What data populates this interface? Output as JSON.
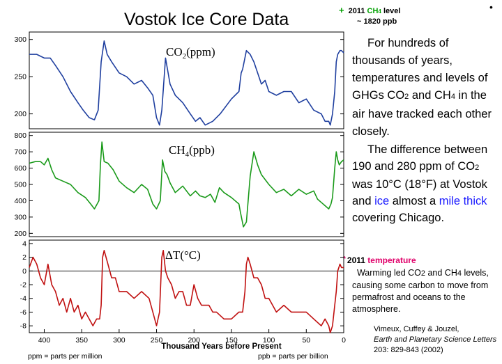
{
  "slide": {
    "title": "Vostok Ice Core Data",
    "bullet": "•",
    "ch4_note": {
      "plus": "+",
      "year": "2011",
      "ch": "CH",
      "sub": "4",
      "level": "level",
      "value": "~ 1820 ppb"
    },
    "para1": {
      "text": "For hundreds of thousands of years, temperatures and levels of GHGs CO",
      "s1": "2",
      "mid": " and CH",
      "s2": "4",
      "tail": " in the air have tracked each other closely."
    },
    "para2": {
      "a": "The difference between 190 and 280 ppm of CO",
      "s1": "2",
      "b": " was 10°C (18°F) at Vostok and ",
      "ice": "ice",
      "c": " almost a ",
      "mile": "mile thick",
      "d": " covering Chicago."
    },
    "temp_note": {
      "star": "*",
      "year": "2011",
      "word": "temperature",
      "a": "Warming led CO",
      "s1": "2",
      "b": " and CH",
      "s2": "4",
      "c": " levels, causing some carbon to move from permafrost and oceans to the atmosphere."
    },
    "citation": {
      "authors": "Vimeux, Cuffey & Jouzel,",
      "journal": "Earth and Planetary Science Letters",
      "ref": " 203: 829-843 (2002)"
    },
    "ppm_note": "ppm = parts per million",
    "ppb_note": "ppb = parts per billion"
  },
  "chart_data": [
    {
      "type": "line",
      "title": "CO2(ppm)",
      "ylim": [
        180,
        310
      ],
      "xlim": [
        420,
        0
      ],
      "yticks": [
        200,
        250,
        300
      ],
      "color": "#1f3f9f",
      "x": [
        420,
        410,
        400,
        392,
        385,
        375,
        365,
        355,
        348,
        340,
        333,
        328,
        324,
        320,
        316,
        310,
        300,
        290,
        280,
        270,
        262,
        255,
        250,
        246,
        243,
        238,
        232,
        225,
        215,
        205,
        198,
        192,
        185,
        175,
        165,
        150,
        140,
        137,
        135,
        130,
        125,
        120,
        110,
        105,
        100,
        90,
        80,
        70,
        60,
        50,
        40,
        30,
        25,
        20,
        18,
        15,
        12,
        10,
        8,
        5,
        3,
        0
      ],
      "y": [
        280,
        280,
        275,
        275,
        265,
        250,
        230,
        215,
        205,
        195,
        192,
        205,
        270,
        298,
        280,
        270,
        255,
        250,
        240,
        245,
        235,
        225,
        195,
        185,
        205,
        275,
        240,
        225,
        215,
        200,
        190,
        195,
        185,
        190,
        200,
        220,
        230,
        255,
        260,
        285,
        280,
        270,
        240,
        245,
        230,
        225,
        230,
        230,
        215,
        220,
        205,
        200,
        190,
        190,
        185,
        200,
        230,
        270,
        280,
        285,
        285,
        282
      ]
    },
    {
      "type": "line",
      "title": "CH4(ppb)",
      "ylim": [
        180,
        820
      ],
      "xlim": [
        420,
        0
      ],
      "yticks": [
        200,
        300,
        400,
        500,
        600,
        700,
        800
      ],
      "color": "#1a9a1a",
      "x": [
        420,
        412,
        405,
        400,
        395,
        390,
        385,
        375,
        365,
        355,
        345,
        338,
        333,
        327,
        325,
        323,
        320,
        315,
        308,
        300,
        290,
        280,
        270,
        262,
        255,
        250,
        245,
        242,
        239,
        236,
        232,
        225,
        215,
        205,
        198,
        192,
        185,
        178,
        172,
        166,
        160,
        150,
        140,
        138,
        134,
        130,
        125,
        120,
        115,
        110,
        100,
        90,
        80,
        70,
        60,
        50,
        45,
        40,
        35,
        30,
        25,
        20,
        17,
        15,
        12,
        10,
        8,
        6,
        3,
        0
      ],
      "y": [
        630,
        640,
        640,
        620,
        660,
        590,
        540,
        520,
        500,
        450,
        420,
        380,
        350,
        400,
        620,
        760,
        640,
        630,
        590,
        520,
        480,
        450,
        500,
        470,
        380,
        350,
        400,
        650,
        580,
        560,
        510,
        450,
        490,
        430,
        460,
        430,
        420,
        440,
        390,
        480,
        450,
        420,
        380,
        330,
        240,
        270,
        550,
        700,
        620,
        560,
        500,
        450,
        470,
        430,
        470,
        440,
        450,
        460,
        410,
        390,
        370,
        350,
        380,
        420,
        600,
        700,
        650,
        620,
        640,
        650
      ]
    },
    {
      "type": "line",
      "title": "ΔT(°C)",
      "xlabel": "Thousand Years before Present",
      "ylim": [
        -9,
        4.5
      ],
      "xlim": [
        420,
        0
      ],
      "yticks": [
        -8,
        -6,
        -4,
        -2,
        0,
        2,
        4
      ],
      "xticks": [
        400,
        350,
        300,
        250,
        200,
        150,
        100,
        50,
        0
      ],
      "color": "#c01010",
      "x": [
        420,
        415,
        410,
        405,
        400,
        395,
        390,
        385,
        380,
        375,
        370,
        365,
        360,
        355,
        350,
        345,
        340,
        335,
        330,
        326,
        324,
        322,
        320,
        315,
        310,
        305,
        300,
        290,
        280,
        270,
        260,
        255,
        250,
        246,
        243,
        241,
        238,
        235,
        230,
        225,
        220,
        215,
        210,
        205,
        200,
        195,
        190,
        185,
        180,
        175,
        170,
        160,
        150,
        140,
        135,
        132,
        130,
        128,
        125,
        120,
        115,
        110,
        105,
        100,
        90,
        80,
        70,
        60,
        50,
        40,
        30,
        25,
        20,
        18,
        15,
        12,
        10,
        8,
        5,
        3,
        0
      ],
      "y": [
        0.5,
        2,
        1,
        -1,
        -2,
        1,
        -2,
        -3,
        -5,
        -4,
        -6,
        -4,
        -6,
        -5,
        -7,
        -6,
        -7,
        -8,
        -7,
        -7,
        -5,
        2,
        3,
        1,
        -1,
        -1,
        -3,
        -3,
        -4,
        -3,
        -4,
        -6,
        -8,
        -6,
        2,
        3,
        0,
        -1,
        -2,
        -4,
        -3,
        -3,
        -5,
        -5,
        -2,
        -4,
        -5,
        -5,
        -5,
        -6,
        -6,
        -7,
        -7,
        -6,
        -6,
        -3,
        1,
        2,
        1,
        -1,
        -1,
        -2,
        -4,
        -4,
        -6,
        -5,
        -6,
        -6,
        -6,
        -7,
        -8,
        -7,
        -8,
        -9,
        -8,
        -5,
        -3,
        0,
        1,
        0.5,
        0.5
      ]
    }
  ]
}
